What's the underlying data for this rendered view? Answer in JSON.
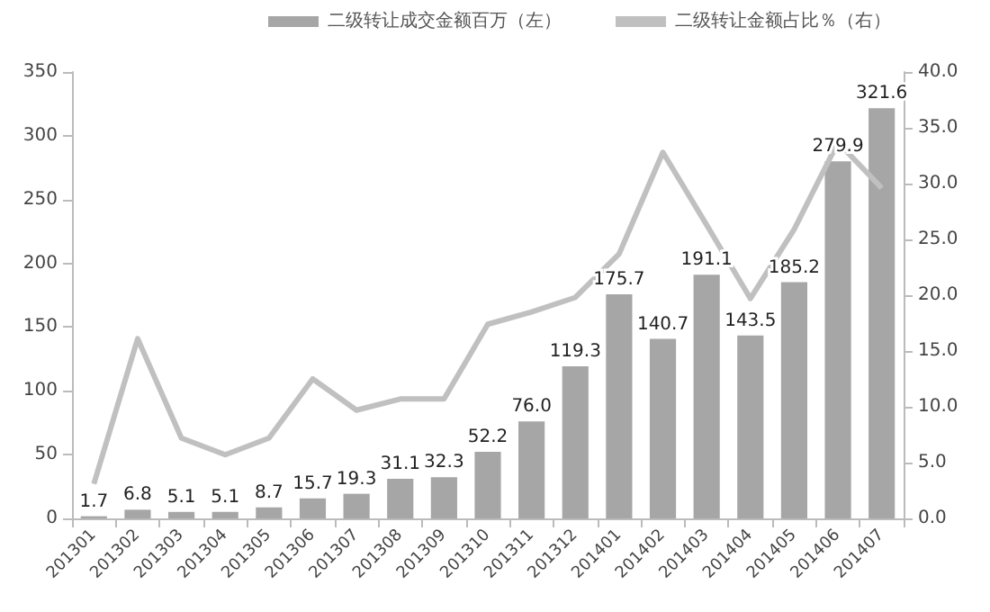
{
  "chart_data": {
    "type": "bar",
    "categories": [
      "201301",
      "201302",
      "201303",
      "201304",
      "201305",
      "201306",
      "201307",
      "201308",
      "201309",
      "201310",
      "201311",
      "201312",
      "201401",
      "201402",
      "201403",
      "201404",
      "201405",
      "201406",
      "201407"
    ],
    "series": [
      {
        "name": "二级转让成交金额百万（左）",
        "type": "bar",
        "color": "#a6a6a6",
        "values": [
          1.7,
          6.8,
          5.1,
          5.1,
          8.7,
          15.7,
          19.3,
          31.1,
          32.3,
          52.2,
          76.0,
          119.3,
          175.7,
          140.7,
          191.1,
          143.5,
          185.2,
          279.9,
          321.6
        ],
        "value_labels": [
          "1.7",
          "6.8",
          "5.1",
          "5.1",
          "8.7",
          "15.7",
          "19.3",
          "31.1",
          "32.3",
          "52.2",
          "76.0",
          "119.3",
          "175.7",
          "140.7",
          "191.1",
          "143.5",
          "185.2",
          "279.9",
          "321.6"
        ]
      },
      {
        "name": "二级转让金额占比％（右）",
        "type": "line",
        "axis": "y2",
        "color": "#c0c0c0",
        "values": [
          3.1,
          16.1,
          7.2,
          5.7,
          7.2,
          12.5,
          9.7,
          10.7,
          10.7,
          17.4,
          18.5,
          19.8,
          23.7,
          32.8,
          26.3,
          19.7,
          25.9,
          33.7,
          29.6
        ]
      }
    ],
    "ylim": [
      0,
      350
    ],
    "yticks": [
      0,
      50,
      100,
      150,
      200,
      250,
      300,
      350
    ],
    "y2lim": [
      0,
      40
    ],
    "y2ticks": [
      {
        "value": 0,
        "label": "0.0"
      },
      {
        "value": 5,
        "label": "5.0"
      },
      {
        "value": 10,
        "label": "10.0"
      },
      {
        "value": 15,
        "label": "15.0"
      },
      {
        "value": 20,
        "label": "20.0"
      },
      {
        "value": 25,
        "label": "25.0"
      },
      {
        "value": 30,
        "label": "30.0"
      },
      {
        "value": 35,
        "label": "35.0"
      },
      {
        "value": 40,
        "label": "40.0"
      }
    ],
    "grid": false,
    "legend": "top right",
    "marker": "none",
    "line_style": "solid"
  }
}
